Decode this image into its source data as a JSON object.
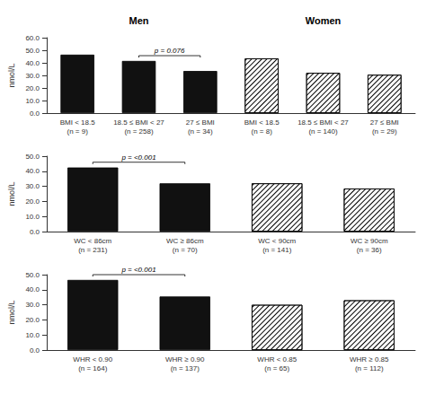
{
  "chart_data": [
    {
      "type": "bar",
      "categories": [
        "BMI < 18.5\n(n = 9)",
        "18.5 ≤ BMI < 27\n(n = 258)",
        "27 ≤ BMI\n(n = 34)",
        "BMI < 18.5\n(n = 8)",
        "18.5 ≤ BMI < 27\n(n = 140)",
        "27 ≤ BMI\n(n = 29)"
      ],
      "values": [
        46.5,
        41.5,
        33.5,
        43.5,
        32.0,
        30.5
      ],
      "colors": [
        "#111111",
        "#111111",
        "#111111",
        "#ffffff",
        "#ffffff",
        "#ffffff"
      ],
      "ylabel": "nmol/L",
      "ylim": [
        0,
        60
      ],
      "yticks": [
        {
          "value": 0,
          "label": "0.0"
        },
        {
          "value": 10,
          "label": "10.0"
        },
        {
          "value": 20,
          "label": "20.0"
        },
        {
          "value": 30,
          "label": "30.0"
        },
        {
          "value": 40,
          "label": "40.0"
        },
        {
          "value": 50,
          "label": "50.0"
        },
        {
          "value": 60,
          "label": "60.0"
        }
      ],
      "grid": false,
      "annotations": [
        {
          "text": "Men",
          "over": [
            "BMI < 18.5\n(n = 9)",
            "18.5 ≤ BMI < 27\n(n = 258)",
            "27 ≤ BMI\n(n = 34)"
          ]
        },
        {
          "text": "Women",
          "over": [
            "BMI < 18.5\n(n = 8)",
            "18.5 ≤ BMI < 27\n(n = 140)",
            "27 ≤ BMI\n(n = 29)"
          ]
        },
        {
          "text": "p = 0.076",
          "bracket": [
            "18.5 ≤ BMI < 27\n(n = 258)",
            "27 ≤ BMI\n(n = 34)"
          ]
        }
      ]
    },
    {
      "type": "bar",
      "categories": [
        "WC < 86cm\n(n = 231)",
        "WC ≥ 86cm\n(n = 70)",
        "WC < 90cm\n(n = 141)",
        "WC ≥ 90cm\n(n = 36)"
      ],
      "values": [
        42.5,
        32.0,
        32.0,
        28.5
      ],
      "colors": [
        "#111111",
        "#111111",
        "#ffffff",
        "#ffffff"
      ],
      "ylabel": "nmol/L",
      "ylim": [
        0,
        50
      ],
      "yticks": [
        {
          "value": 0,
          "label": "0.0"
        },
        {
          "value": 10,
          "label": "10.0"
        },
        {
          "value": 20,
          "label": "20.0"
        },
        {
          "value": 30,
          "label": "30.0"
        },
        {
          "value": 40,
          "label": "40.0"
        },
        {
          "value": 50,
          "label": "50.0"
        }
      ],
      "grid": false,
      "annotations": [
        {
          "text": "p = <0.001",
          "bracket": [
            "WC < 86cm\n(n = 231)",
            "WC ≥ 86cm\n(n = 70)"
          ]
        }
      ]
    },
    {
      "type": "bar",
      "categories": [
        "WHR < 0.90\n(n = 164)",
        "WHR ≥ 0.90\n(n = 137)",
        "WHR < 0.85\n(n = 65)",
        "WHR ≥ 0.85\n(n = 112)"
      ],
      "values": [
        46.5,
        35.5,
        30.0,
        33.0
      ],
      "colors": [
        "#111111",
        "#111111",
        "#ffffff",
        "#ffffff"
      ],
      "ylabel": "nmol/L",
      "ylim": [
        0,
        50
      ],
      "yticks": [
        {
          "value": 0,
          "label": "0.0"
        },
        {
          "value": 10,
          "label": "10.0"
        },
        {
          "value": 20,
          "label": "20.0"
        },
        {
          "value": 30,
          "label": "30.0"
        },
        {
          "value": 40,
          "label": "40.0"
        },
        {
          "value": 50,
          "label": "50.0"
        }
      ],
      "grid": false,
      "annotations": [
        {
          "text": "p = <0.001",
          "bracket": [
            "WHR < 0.90\n(n = 164)",
            "WHR ≥ 0.90\n(n = 137)"
          ]
        }
      ]
    }
  ]
}
